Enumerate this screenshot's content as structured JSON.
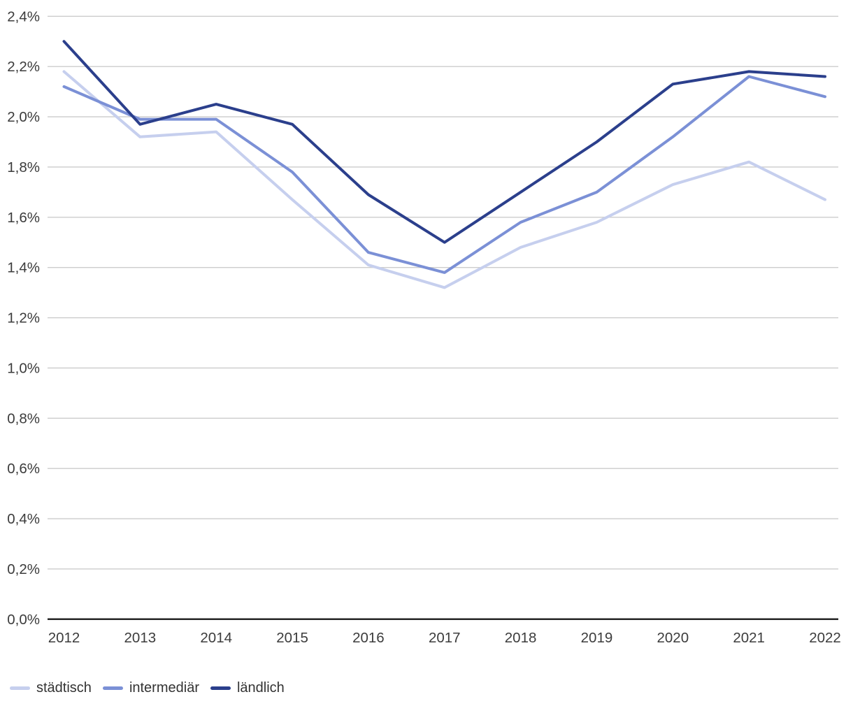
{
  "chart_data": {
    "type": "line",
    "title": "",
    "xlabel": "",
    "ylabel": "",
    "categories": [
      "2012",
      "2013",
      "2014",
      "2015",
      "2016",
      "2017",
      "2018",
      "2019",
      "2020",
      "2021",
      "2022"
    ],
    "series": [
      {
        "name": "städtisch",
        "slug": "staedtisch",
        "color": "#c6cfee",
        "values": [
          2.18,
          1.92,
          1.94,
          1.67,
          1.41,
          1.32,
          1.48,
          1.58,
          1.73,
          1.82,
          1.67
        ]
      },
      {
        "name": "intermediär",
        "slug": "intermediaer",
        "color": "#7b90d6",
        "values": [
          2.12,
          1.99,
          1.99,
          1.78,
          1.46,
          1.38,
          1.58,
          1.7,
          1.92,
          2.16,
          2.08
        ]
      },
      {
        "name": "ländlich",
        "slug": "laendlich",
        "color": "#2b3f8c",
        "values": [
          2.3,
          1.97,
          2.05,
          1.97,
          1.69,
          1.5,
          1.7,
          1.9,
          2.13,
          2.18,
          2.16
        ]
      }
    ],
    "ylim": [
      0,
      2.4
    ],
    "ytick_step": 0.2,
    "ytick_labels": [
      "0,0%",
      "0,2%",
      "0,4%",
      "0,6%",
      "0,8%",
      "1,0%",
      "1,2%",
      "1,4%",
      "1,6%",
      "1,8%",
      "2,0%",
      "2,2%",
      "2,4%"
    ],
    "grid": true,
    "legend_position": "bottom-left",
    "value_format": "percent-german-comma"
  },
  "colors": {
    "grid_line": "#cccccc",
    "axis_line": "#262626",
    "tick_text": "#3c3c3c",
    "legend_text": "#333333"
  }
}
